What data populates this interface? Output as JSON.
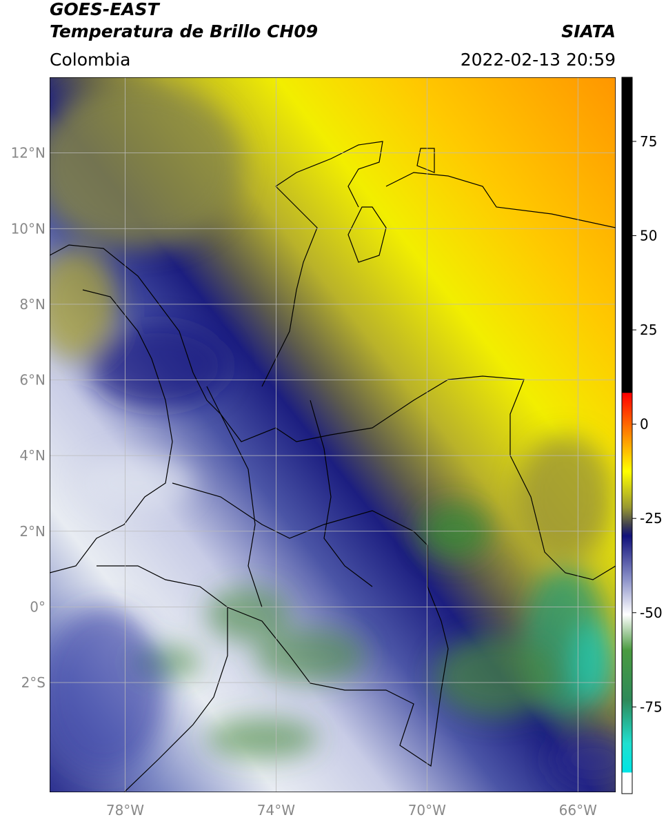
{
  "header": {
    "title_line1": "GOES-EAST",
    "title_line2": "Temperatura de Brillo CH09",
    "region": "Colombia",
    "source": "SIATA",
    "timestamp": "2022-02-13 20:59"
  },
  "map": {
    "lonlim": [
      -80,
      -65
    ],
    "latlim": [
      -4.9,
      14
    ],
    "lat_ticks": [
      {
        "value": 12,
        "label": "12°N"
      },
      {
        "value": 10,
        "label": "10°N"
      },
      {
        "value": 8,
        "label": "8°N"
      },
      {
        "value": 6,
        "label": "6°N"
      },
      {
        "value": 4,
        "label": "4°N"
      },
      {
        "value": 2,
        "label": "2°N"
      },
      {
        "value": 0,
        "label": "0°"
      },
      {
        "value": -2,
        "label": "2°S"
      }
    ],
    "lon_ticks": [
      {
        "value": -78,
        "label": "78°W"
      },
      {
        "value": -74,
        "label": "74°W"
      },
      {
        "value": -70,
        "label": "70°W"
      },
      {
        "value": -66,
        "label": "66°W"
      }
    ]
  },
  "colorbar": {
    "lim": [
      -98,
      92
    ],
    "ticks": [
      75,
      50,
      25,
      0,
      -25,
      -50,
      -75
    ]
  }
}
